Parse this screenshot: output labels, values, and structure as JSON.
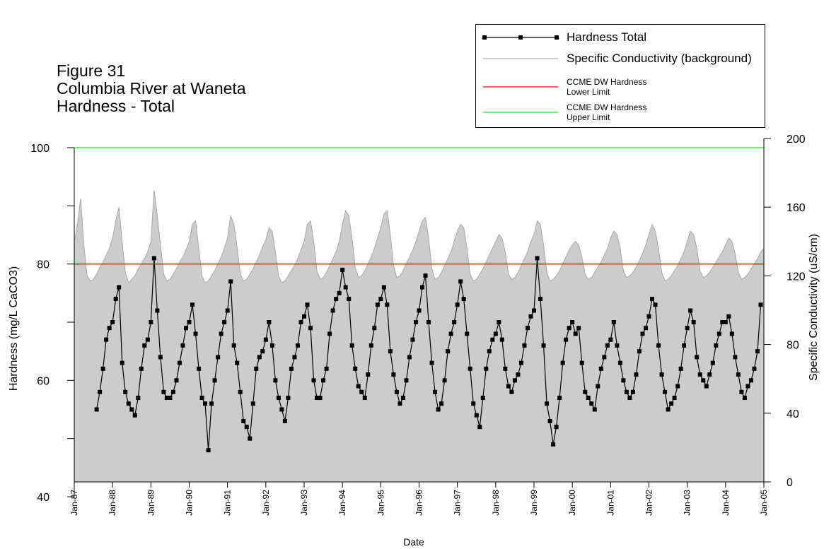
{
  "chart_data": {
    "type": "line",
    "title_lines": [
      "Figure 31",
      "Columbia River at Waneta",
      "Hardness - Total"
    ],
    "xlabel": "Date",
    "ylabel": "Hardness (mg/L CaCO3)",
    "y2label": "Specific Conductivity (uS/cm)",
    "x": [
      "1987-01",
      "1987-02",
      "1987-03",
      "1987-04",
      "1987-05",
      "1987-06",
      "1987-07",
      "1987-08",
      "1987-09",
      "1987-10",
      "1987-11",
      "1987-12",
      "1988-01",
      "1988-02",
      "1988-03",
      "1988-04",
      "1988-05",
      "1988-06",
      "1988-07",
      "1988-08",
      "1988-09",
      "1988-10",
      "1988-11",
      "1988-12",
      "1989-01",
      "1989-02",
      "1989-03",
      "1989-04",
      "1989-05",
      "1989-06",
      "1989-07",
      "1989-08",
      "1989-09",
      "1989-10",
      "1989-11",
      "1989-12",
      "1990-01",
      "1990-02",
      "1990-03",
      "1990-04",
      "1990-05",
      "1990-06",
      "1990-07",
      "1990-08",
      "1990-09",
      "1990-10",
      "1990-11",
      "1990-12",
      "1991-01",
      "1991-02",
      "1991-03",
      "1991-04",
      "1991-05",
      "1991-06",
      "1991-07",
      "1991-08",
      "1991-09",
      "1991-10",
      "1991-11",
      "1991-12",
      "1992-01",
      "1992-02",
      "1992-03",
      "1992-04",
      "1992-05",
      "1992-06",
      "1992-07",
      "1992-08",
      "1992-09",
      "1992-10",
      "1992-11",
      "1992-12",
      "1993-01",
      "1993-02",
      "1993-03",
      "1993-04",
      "1993-05",
      "1993-06",
      "1993-07",
      "1993-08",
      "1993-09",
      "1993-10",
      "1993-11",
      "1993-12",
      "1994-01",
      "1994-02",
      "1994-03",
      "1994-04",
      "1994-05",
      "1994-06",
      "1994-07",
      "1994-08",
      "1994-09",
      "1994-10",
      "1994-11",
      "1994-12",
      "1995-01",
      "1995-02",
      "1995-03",
      "1995-04",
      "1995-05",
      "1995-06",
      "1995-07",
      "1995-08",
      "1995-09",
      "1995-10",
      "1995-11",
      "1995-12",
      "1996-01",
      "1996-02",
      "1996-03",
      "1996-04",
      "1996-05",
      "1996-06",
      "1996-07",
      "1996-08",
      "1996-09",
      "1996-10",
      "1996-11",
      "1996-12",
      "1997-01",
      "1997-02",
      "1997-03",
      "1997-04",
      "1997-05",
      "1997-06",
      "1997-07",
      "1997-08",
      "1997-09",
      "1997-10",
      "1997-11",
      "1997-12",
      "1998-01",
      "1998-02",
      "1998-03",
      "1998-04",
      "1998-05",
      "1998-06",
      "1998-07",
      "1998-08",
      "1998-09",
      "1998-10",
      "1998-11",
      "1998-12",
      "1999-01",
      "1999-02",
      "1999-03",
      "1999-04",
      "1999-05",
      "1999-06",
      "1999-07",
      "1999-08",
      "1999-09",
      "1999-10",
      "1999-11",
      "1999-12",
      "2000-01",
      "2000-02",
      "2000-03",
      "2000-04",
      "2000-05",
      "2000-06",
      "2000-07",
      "2000-08",
      "2000-09",
      "2000-10",
      "2000-11",
      "2000-12",
      "2001-01",
      "2001-02",
      "2001-03",
      "2001-04",
      "2001-05",
      "2001-06",
      "2001-07",
      "2001-08",
      "2001-09",
      "2001-10",
      "2001-11",
      "2001-12",
      "2002-01",
      "2002-02",
      "2002-03",
      "2002-04",
      "2002-05",
      "2002-06",
      "2002-07",
      "2002-08",
      "2002-09",
      "2002-10",
      "2002-11",
      "2002-12",
      "2003-01",
      "2003-02",
      "2003-03",
      "2003-04",
      "2003-05",
      "2003-06",
      "2003-07",
      "2003-08",
      "2003-09",
      "2003-10",
      "2003-11",
      "2003-12",
      "2004-01",
      "2004-02",
      "2004-03",
      "2004-04",
      "2004-05",
      "2004-06",
      "2004-07",
      "2004-08",
      "2004-09",
      "2004-10",
      "2004-11",
      "2004-12",
      "2005-01"
    ],
    "series": [
      {
        "name": "Hardness Total",
        "color": "#000000",
        "axis": "y",
        "values": [
          null,
          null,
          null,
          null,
          null,
          null,
          null,
          55,
          58,
          62,
          67,
          69,
          70,
          74,
          76,
          63,
          58,
          56,
          55,
          54,
          57,
          62,
          66,
          67,
          70,
          81,
          72,
          64,
          58,
          57,
          57,
          58,
          60,
          63,
          66,
          69,
          70,
          73,
          68,
          62,
          57,
          56,
          48,
          56,
          60,
          64,
          68,
          70,
          72,
          77,
          66,
          63,
          58,
          53,
          52,
          50,
          56,
          62,
          64,
          65,
          67,
          70,
          66,
          60,
          57,
          55,
          53,
          57,
          62,
          64,
          66,
          70,
          71,
          73,
          69,
          60,
          57,
          57,
          60,
          62,
          68,
          72,
          74,
          75,
          79,
          76,
          74,
          66,
          62,
          59,
          58,
          57,
          61,
          66,
          69,
          73,
          74,
          76,
          73,
          65,
          61,
          58,
          56,
          57,
          60,
          64,
          67,
          70,
          72,
          76,
          78,
          70,
          63,
          58,
          55,
          56,
          60,
          65,
          68,
          70,
          73,
          77,
          74,
          68,
          62,
          56,
          54,
          52,
          57,
          62,
          65,
          67,
          68,
          70,
          67,
          62,
          59,
          58,
          60,
          61,
          63,
          66,
          69,
          71,
          72,
          81,
          74,
          66,
          56,
          53,
          49,
          52,
          57,
          63,
          67,
          69,
          70,
          68,
          69,
          63,
          58,
          57,
          56,
          55,
          59,
          62,
          64,
          66,
          67,
          70,
          66,
          63,
          60,
          58,
          57,
          58,
          61,
          65,
          68,
          69,
          71,
          74,
          73,
          66,
          61,
          58,
          55,
          56,
          57,
          59,
          62,
          66,
          69,
          72,
          70,
          64,
          61,
          60,
          59,
          61,
          63,
          66,
          68,
          70,
          70,
          71,
          68,
          64,
          61,
          58,
          57,
          59,
          60,
          62,
          65,
          73,
          null
        ]
      },
      {
        "name": "Specific Conductivity (background)",
        "color": "#cccccc",
        "axis": "y2",
        "values": [
          140,
          150,
          165,
          138,
          120,
          117,
          118,
          121,
          125,
          128,
          132,
          136,
          142,
          152,
          160,
          140,
          122,
          116,
          118,
          120,
          124,
          127,
          130,
          134,
          140,
          170,
          155,
          138,
          121,
          117,
          118,
          121,
          124,
          128,
          131,
          135,
          140,
          150,
          152,
          136,
          120,
          116,
          117,
          120,
          123,
          127,
          131,
          136,
          142,
          155,
          150,
          137,
          121,
          117,
          118,
          121,
          124,
          128,
          132,
          137,
          141,
          148,
          146,
          134,
          120,
          116,
          117,
          120,
          123,
          126,
          130,
          135,
          140,
          150,
          152,
          140,
          123,
          118,
          119,
          122,
          126,
          130,
          134,
          140,
          150,
          158,
          155,
          142,
          125,
          119,
          120,
          123,
          127,
          131,
          136,
          142,
          148,
          156,
          158,
          144,
          126,
          119,
          120,
          123,
          127,
          131,
          135,
          140,
          146,
          152,
          154,
          142,
          124,
          118,
          119,
          122,
          126,
          130,
          134,
          140,
          146,
          150,
          148,
          136,
          121,
          117,
          118,
          121,
          124,
          128,
          132,
          136,
          140,
          144,
          142,
          134,
          121,
          118,
          119,
          122,
          126,
          130,
          134,
          140,
          144,
          152,
          150,
          138,
          122,
          117,
          118,
          120,
          123,
          127,
          131,
          135,
          138,
          140,
          138,
          131,
          121,
          118,
          119,
          122,
          125,
          128,
          132,
          136,
          142,
          146,
          144,
          136,
          123,
          119,
          120,
          122,
          125,
          129,
          133,
          138,
          144,
          150,
          146,
          136,
          122,
          117,
          118,
          120,
          123,
          126,
          130,
          134,
          140,
          146,
          144,
          136,
          123,
          119,
          120,
          122,
          125,
          128,
          131,
          134,
          138,
          142,
          140,
          133,
          122,
          118,
          119,
          121,
          124,
          127,
          130,
          134,
          136
        ]
      }
    ],
    "reference_lines": [
      {
        "name": "CCME DW Hardness\nLower Limit",
        "color": "#ff0000",
        "value": 80
      },
      {
        "name": "CCME DW Hardness\nUpper Limit",
        "color": "#00ff00",
        "value": 100
      }
    ],
    "ylim": [
      40,
      100
    ],
    "yticks": [
      40,
      60,
      80,
      100
    ],
    "yminorticks": [
      50,
      70,
      90
    ],
    "y2lim": [
      0,
      200
    ],
    "y2ticks": [
      0,
      40,
      80,
      120,
      160,
      200
    ],
    "xlim": [
      "1987-01",
      "2005-01"
    ],
    "xticks": [
      {
        "value": "1987-01",
        "label": "Jan-87"
      },
      {
        "value": "1988-01",
        "label": "Jan-88"
      },
      {
        "value": "1989-01",
        "label": "Jan-89"
      },
      {
        "value": "1990-01",
        "label": "Jan-90"
      },
      {
        "value": "1991-01",
        "label": "Jan-91"
      },
      {
        "value": "1992-01",
        "label": "Jan-92"
      },
      {
        "value": "1993-01",
        "label": "Jan-93"
      },
      {
        "value": "1994-01",
        "label": "Jan-94"
      },
      {
        "value": "1995-01",
        "label": "Jan-95"
      },
      {
        "value": "1996-01",
        "label": "Jan-96"
      },
      {
        "value": "1997-01",
        "label": "Jan-97"
      },
      {
        "value": "1998-01",
        "label": "Jan-98"
      },
      {
        "value": "1999-01",
        "label": "Jan-99"
      },
      {
        "value": "2000-01",
        "label": "Jan-00"
      },
      {
        "value": "2001-01",
        "label": "Jan-01"
      },
      {
        "value": "2002-01",
        "label": "Jan-02"
      },
      {
        "value": "2003-01",
        "label": "Jan-03"
      },
      {
        "value": "2004-01",
        "label": "Jan-04"
      },
      {
        "value": "2005-01",
        "label": "Jan-05"
      }
    ]
  }
}
